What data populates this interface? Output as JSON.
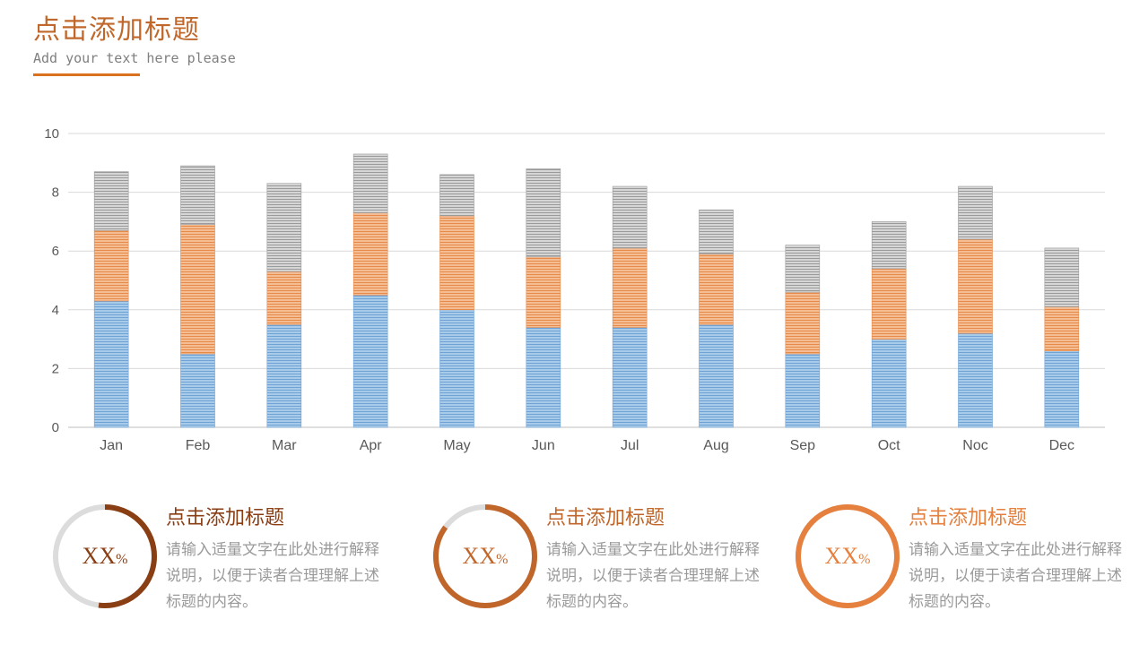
{
  "header": {
    "title": "点击添加标题",
    "subtitle": "Add your text here please"
  },
  "colors": {
    "accent": "#d9711f",
    "series_blue": "#8fb9e0",
    "series_orange": "#f0a877",
    "series_gray": "#bdbdbd",
    "axis_text": "#595959",
    "grid": "#d9d9d9"
  },
  "chart_data": {
    "type": "bar",
    "stacked": true,
    "categories": [
      "Jan",
      "Feb",
      "Mar",
      "Apr",
      "May",
      "Jun",
      "Jul",
      "Aug",
      "Sep",
      "Oct",
      "Noc",
      "Dec"
    ],
    "series": [
      {
        "values": [
          4.3,
          2.5,
          3.5,
          4.5,
          4.0,
          3.4,
          3.4,
          3.5,
          2.5,
          3.0,
          3.2,
          2.6
        ]
      },
      {
        "values": [
          2.4,
          4.4,
          1.8,
          2.8,
          3.2,
          2.4,
          2.7,
          2.4,
          2.1,
          2.4,
          3.2,
          1.5
        ]
      },
      {
        "values": [
          2.0,
          2.0,
          3.0,
          2.0,
          1.4,
          3.0,
          2.1,
          1.5,
          1.6,
          1.6,
          1.8,
          2.0
        ]
      }
    ],
    "ylim": [
      0,
      10
    ],
    "yticks": [
      "0",
      "2",
      "4",
      "6",
      "8",
      "10"
    ],
    "grid": true,
    "legend": "none"
  },
  "cards": [
    {
      "percent_label": "XX",
      "percent_sign": "%",
      "progress": 0.52,
      "color": "#8a3e14",
      "title": "点击添加标题",
      "text": "请输入适量文字在此处进行解释说明，以便于读者合理理解上述标题的内容。"
    },
    {
      "percent_label": "XX",
      "percent_sign": "%",
      "progress": 0.85,
      "color": "#c0662b",
      "title": "点击添加标题",
      "text": "请输入适量文字在此处进行解释说明，以便于读者合理理解上述标题的内容。"
    },
    {
      "percent_label": "XX",
      "percent_sign": "%",
      "progress": 1.0,
      "color": "#e5803e",
      "title": "点击添加标题",
      "text": "请输入适量文字在此处进行解释说明，以便于读者合理理解上述标题的内容。"
    }
  ]
}
